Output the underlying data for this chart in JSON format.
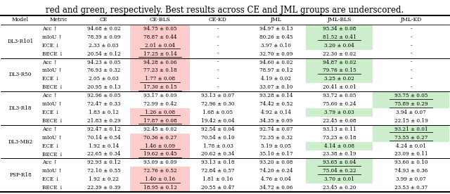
{
  "title_text": "red and green, respectively. Best results across CE and JML groups are underscored.",
  "columns": [
    "Model",
    "Metric",
    "CE",
    "CE-BLS",
    "CE-KD",
    "JML",
    "JML-BLS",
    "JML-KD"
  ],
  "rows": [
    {
      "model": "DL3-R101",
      "metrics": [
        {
          "name": "Acc ↑",
          "CE": "94.68 ± 0.02",
          "CE-BLS": "94.75 ± 0.05",
          "CE-KD": "-",
          "JML": "94.97 ± 0.13",
          "JML-BLS": "95.34 ± 0.08",
          "JML-KD": "-",
          "ce_bls_bg": "pink",
          "ce_kd_bg": "none",
          "jml_bls_bg": "green",
          "jml_kd_bg": "none",
          "underline_ce_bls": false,
          "underline_jml_bls": false,
          "underline_jml_kd": false
        },
        {
          "name": "mIoU ↑",
          "CE": "78.39 ± 0.09",
          "CE-BLS": "78.87 ± 0.44",
          "CE-KD": "-",
          "JML": "80.26 ± 0.45",
          "JML-BLS": "81.52 ± 0.41",
          "JML-KD": "-",
          "ce_bls_bg": "pink",
          "ce_kd_bg": "none",
          "jml_bls_bg": "green",
          "jml_kd_bg": "none",
          "underline_ce_bls": false,
          "underline_jml_bls": true,
          "underline_jml_kd": false
        },
        {
          "name": "ECE ↓",
          "CE": "2.33 ± 0.03",
          "CE-BLS": "2.01 ± 0.04",
          "CE-KD": "-",
          "JML": "3.97 ± 0.10",
          "JML-BLS": "3.20 ± 0.04",
          "JML-KD": "-",
          "ce_bls_bg": "pink",
          "ce_kd_bg": "none",
          "jml_bls_bg": "green",
          "jml_kd_bg": "none",
          "underline_ce_bls": true,
          "underline_jml_bls": false,
          "underline_jml_kd": false
        },
        {
          "name": "BECE ↓",
          "CE": "20.54 ± 0.12",
          "CE-BLS": "17.25 ± 0.14",
          "CE-KD": "-",
          "JML": "32.70 ± 0.09",
          "JML-BLS": "22.30 ± 0.02",
          "JML-KD": "-",
          "ce_bls_bg": "pink",
          "ce_kd_bg": "none",
          "jml_bls_bg": "none",
          "jml_kd_bg": "none",
          "underline_ce_bls": true,
          "underline_jml_bls": false,
          "underline_jml_kd": false
        }
      ]
    },
    {
      "model": "DL3-R50",
      "metrics": [
        {
          "name": "Acc ↑",
          "CE": "94.23 ± 0.05",
          "CE-BLS": "94.28 ± 0.06",
          "CE-KD": "-",
          "JML": "94.60 ± 0.02",
          "JML-BLS": "94.87 ± 0.02",
          "JML-KD": "-",
          "ce_bls_bg": "pink",
          "ce_kd_bg": "none",
          "jml_bls_bg": "green",
          "jml_kd_bg": "none",
          "underline_ce_bls": false,
          "underline_jml_bls": false,
          "underline_jml_kd": false
        },
        {
          "name": "mIoU ↑",
          "CE": "76.93 ± 0.32",
          "CE-BLS": "77.23 ± 0.18",
          "CE-KD": "-",
          "JML": "78.97 ± 0.12",
          "JML-BLS": "79.76 ± 0.15",
          "JML-KD": "-",
          "ce_bls_bg": "pink",
          "ce_kd_bg": "none",
          "jml_bls_bg": "green",
          "jml_kd_bg": "none",
          "underline_ce_bls": false,
          "underline_jml_bls": true,
          "underline_jml_kd": false
        },
        {
          "name": "ECE ↓",
          "CE": "2.05 ± 0.03",
          "CE-BLS": "1.77 ± 0.08",
          "CE-KD": "-",
          "JML": "4.19 ± 0.02",
          "JML-BLS": "3.25 ± 0.02",
          "JML-KD": "-",
          "ce_bls_bg": "pink",
          "ce_kd_bg": "none",
          "jml_bls_bg": "green",
          "jml_kd_bg": "none",
          "underline_ce_bls": true,
          "underline_jml_bls": false,
          "underline_jml_kd": false
        },
        {
          "name": "BECE ↓",
          "CE": "20.95 ± 0.13",
          "CE-BLS": "17.30 ± 0.15",
          "CE-KD": "-",
          "JML": "33.07 ± 0.10",
          "JML-BLS": "20.41 ± 0.01",
          "JML-KD": "-",
          "ce_bls_bg": "pink",
          "ce_kd_bg": "none",
          "jml_bls_bg": "none",
          "jml_kd_bg": "none",
          "underline_ce_bls": true,
          "underline_jml_bls": false,
          "underline_jml_kd": false
        }
      ]
    },
    {
      "model": "DL3-R18",
      "metrics": [
        {
          "name": "Acc ↑",
          "CE": "92.96 ± 0.05",
          "CE-BLS": "93.17 ± 0.09",
          "CE-KD": "93.13 ± 0.07",
          "JML": "93.28 ± 0.14",
          "JML-BLS": "93.72 ± 0.05",
          "JML-KD": "93.75 ± 0.05",
          "ce_bls_bg": "none",
          "ce_kd_bg": "none",
          "jml_bls_bg": "none",
          "jml_kd_bg": "green",
          "underline_ce_bls": false,
          "underline_jml_bls": false,
          "underline_jml_kd": true
        },
        {
          "name": "mIoU ↑",
          "CE": "72.47 ± 0.33",
          "CE-BLS": "72.99 ± 0.42",
          "CE-KD": "72.96 ± 0.30",
          "JML": "74.42 ± 0.52",
          "JML-BLS": "75.60 ± 0.24",
          "JML-KD": "75.89 ± 0.29",
          "ce_bls_bg": "none",
          "ce_kd_bg": "none",
          "jml_bls_bg": "none",
          "jml_kd_bg": "green",
          "underline_ce_bls": false,
          "underline_jml_bls": false,
          "underline_jml_kd": true
        },
        {
          "name": "ECE ↓",
          "CE": "1.83 ± 0.12",
          "CE-BLS": "1.26 ± 0.08",
          "CE-KD": "1.68 ± 0.05",
          "JML": "4.92 ± 0.14",
          "JML-BLS": "3.79 ± 0.03",
          "JML-KD": "3.94 ± 0.07",
          "ce_bls_bg": "pink",
          "ce_kd_bg": "none",
          "jml_bls_bg": "green",
          "jml_kd_bg": "none",
          "underline_ce_bls": true,
          "underline_jml_bls": false,
          "underline_jml_kd": false
        },
        {
          "name": "BECE ↓",
          "CE": "21.83 ± 0.29",
          "CE-BLS": "17.87 ± 0.08",
          "CE-KD": "19.42 ± 0.04",
          "JML": "34.35 ± 0.09",
          "JML-BLS": "22.45 ± 0.08",
          "JML-KD": "22.15 ± 0.19",
          "ce_bls_bg": "pink",
          "ce_kd_bg": "none",
          "jml_bls_bg": "none",
          "jml_kd_bg": "none",
          "underline_ce_bls": true,
          "underline_jml_bls": false,
          "underline_jml_kd": false
        }
      ]
    },
    {
      "model": "DL3-MB2",
      "metrics": [
        {
          "name": "Acc ↑",
          "CE": "92.47 ± 0.12",
          "CE-BLS": "92.45 ± 0.02",
          "CE-KD": "92.54 ± 0.04",
          "JML": "92.74 ± 0.07",
          "JML-BLS": "93.13 ± 0.11",
          "JML-KD": "93.21 ± 0.01",
          "ce_bls_bg": "none",
          "ce_kd_bg": "none",
          "jml_bls_bg": "none",
          "jml_kd_bg": "green",
          "underline_ce_bls": false,
          "underline_jml_bls": false,
          "underline_jml_kd": true
        },
        {
          "name": "mIoU ↑",
          "CE": "70.14 ± 0.54",
          "CE-BLS": "70.36 ± 0.27",
          "CE-KD": "70.54 ± 0.10",
          "JML": "72.35 ± 0.32",
          "JML-BLS": "73.25 ± 0.18",
          "JML-KD": "73.55 ± 0.27",
          "ce_bls_bg": "pink",
          "ce_kd_bg": "none",
          "jml_bls_bg": "none",
          "jml_kd_bg": "green",
          "underline_ce_bls": false,
          "underline_jml_bls": false,
          "underline_jml_kd": true
        },
        {
          "name": "ECE ↓",
          "CE": "1.92 ± 0.14",
          "CE-BLS": "1.46 ± 0.09",
          "CE-KD": "1.78 ± 0.03",
          "JML": "5.19 ± 0.05",
          "JML-BLS": "4.14 ± 0.08",
          "JML-KD": "4.24 ± 0.01",
          "ce_bls_bg": "pink",
          "ce_kd_bg": "none",
          "jml_bls_bg": "green",
          "jml_kd_bg": "none",
          "underline_ce_bls": true,
          "underline_jml_bls": false,
          "underline_jml_kd": false
        },
        {
          "name": "BECE ↓",
          "CE": "22.65 ± 0.34",
          "CE-BLS": "19.62 ± 0.45",
          "CE-KD": "20.62 ± 0.34",
          "JML": "35.10 ± 0.17",
          "JML-BLS": "23.38 ± 0.19",
          "JML-KD": "23.09 ± 0.11",
          "ce_bls_bg": "pink",
          "ce_kd_bg": "none",
          "jml_bls_bg": "none",
          "jml_kd_bg": "none",
          "underline_ce_bls": true,
          "underline_jml_bls": false,
          "underline_jml_kd": false
        }
      ]
    },
    {
      "model": "PSP-R18",
      "metrics": [
        {
          "name": "Acc ↑",
          "CE": "92.93 ± 0.12",
          "CE-BLS": "93.09 ± 0.09",
          "CE-KD": "93.13 ± 0.18",
          "JML": "93.20 ± 0.08",
          "JML-BLS": "93.65 ± 0.04",
          "JML-KD": "93.60 ± 0.10",
          "ce_bls_bg": "none",
          "ce_kd_bg": "none",
          "jml_bls_bg": "green",
          "jml_kd_bg": "none",
          "underline_ce_bls": false,
          "underline_jml_bls": true,
          "underline_jml_kd": false
        },
        {
          "name": "mIoU ↑",
          "CE": "72.10 ± 0.55",
          "CE-BLS": "72.76 ± 0.52",
          "CE-KD": "72.84 ± 0.57",
          "JML": "74.20 ± 0.24",
          "JML-BLS": "75.04 ± 0.22",
          "JML-KD": "74.93 ± 0.36",
          "ce_bls_bg": "pink",
          "ce_kd_bg": "none",
          "jml_bls_bg": "green",
          "jml_kd_bg": "none",
          "underline_ce_bls": false,
          "underline_jml_bls": true,
          "underline_jml_kd": false
        },
        {
          "name": "ECE ↓",
          "CE": "1.92 ± 0.22",
          "CE-BLS": "1.40 ± 0.16",
          "CE-KD": "1.81 ± 0.16",
          "JML": "4.76 ± 0.04",
          "JML-BLS": "3.70 ± 0.01",
          "JML-KD": "3.99 ± 0.07",
          "ce_bls_bg": "pink",
          "ce_kd_bg": "none",
          "jml_bls_bg": "green",
          "jml_kd_bg": "none",
          "underline_ce_bls": true,
          "underline_jml_bls": false,
          "underline_jml_kd": false
        },
        {
          "name": "BECE ↓",
          "CE": "22.39 ± 0.39",
          "CE-BLS": "18.95 ± 0.12",
          "CE-KD": "20.55 ± 0.47",
          "JML": "34.72 ± 0.06",
          "JML-BLS": "23.45 ± 0.20",
          "JML-KD": "23.53 ± 0.37",
          "ce_bls_bg": "pink",
          "ce_kd_bg": "none",
          "jml_bls_bg": "none",
          "jml_kd_bg": "none",
          "underline_ce_bls": true,
          "underline_jml_bls": false,
          "underline_jml_kd": false
        }
      ]
    }
  ],
  "pink_color": "#FFCCCC",
  "green_color": "#CCEECC",
  "font_size": 5.2,
  "header_font_size": 5.5,
  "title_font_size": 8.5
}
